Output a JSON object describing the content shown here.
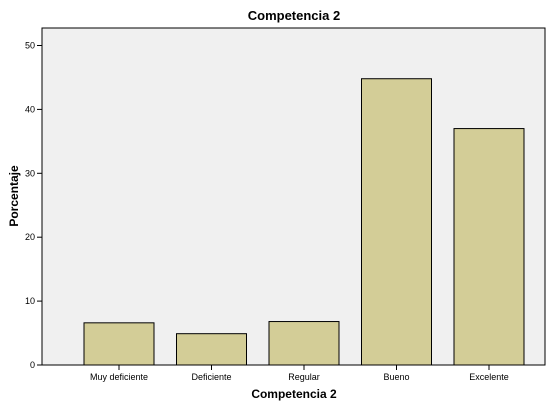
{
  "chart_data": {
    "type": "bar",
    "title": "Competencia 2",
    "xlabel": "Competencia 2",
    "ylabel": "Porcentaje",
    "categories": [
      "Muy deficiente",
      "Deficiente",
      "Regular",
      "Bueno",
      "Excelente"
    ],
    "values": [
      6.6,
      4.9,
      6.8,
      44.8,
      37.0
    ],
    "yticks": [
      0,
      10,
      20,
      30,
      40,
      50
    ],
    "ylim": [
      0,
      50
    ],
    "grid": false,
    "bar_color": "#d3cd97",
    "bar_stroke": "#000000"
  }
}
